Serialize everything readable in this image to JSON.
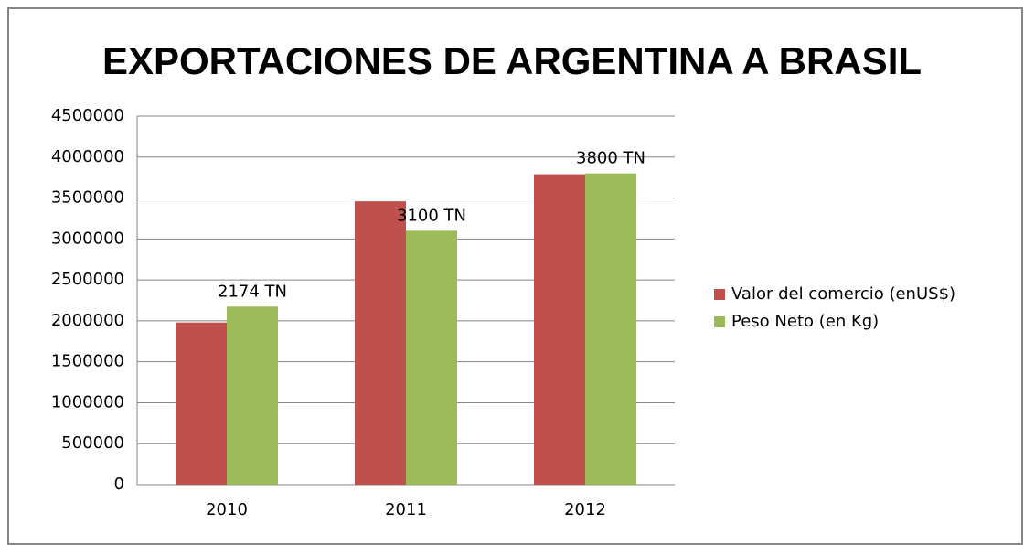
{
  "chart_data": {
    "type": "bar",
    "title": "EXPORTACIONES DE ARGENTINA A BRASIL",
    "categories": [
      "2010",
      "2011",
      "2012"
    ],
    "series": [
      {
        "name": "Valor del comercio (enUS$)",
        "color": "#c0504d",
        "values": [
          1980000,
          3460000,
          3790000
        ]
      },
      {
        "name": "Peso Neto (en Kg)",
        "color": "#9bbb59",
        "values": [
          2174000,
          3100000,
          3800000
        ],
        "value_labels": [
          "2174 TN",
          "3100 TN",
          "3800 TN"
        ]
      }
    ],
    "ylim": [
      0,
      4500000
    ],
    "yticks": [
      0,
      500000,
      1000000,
      1500000,
      2000000,
      2500000,
      3000000,
      3500000,
      4000000,
      4500000
    ],
    "grid": true,
    "legend": "right"
  }
}
